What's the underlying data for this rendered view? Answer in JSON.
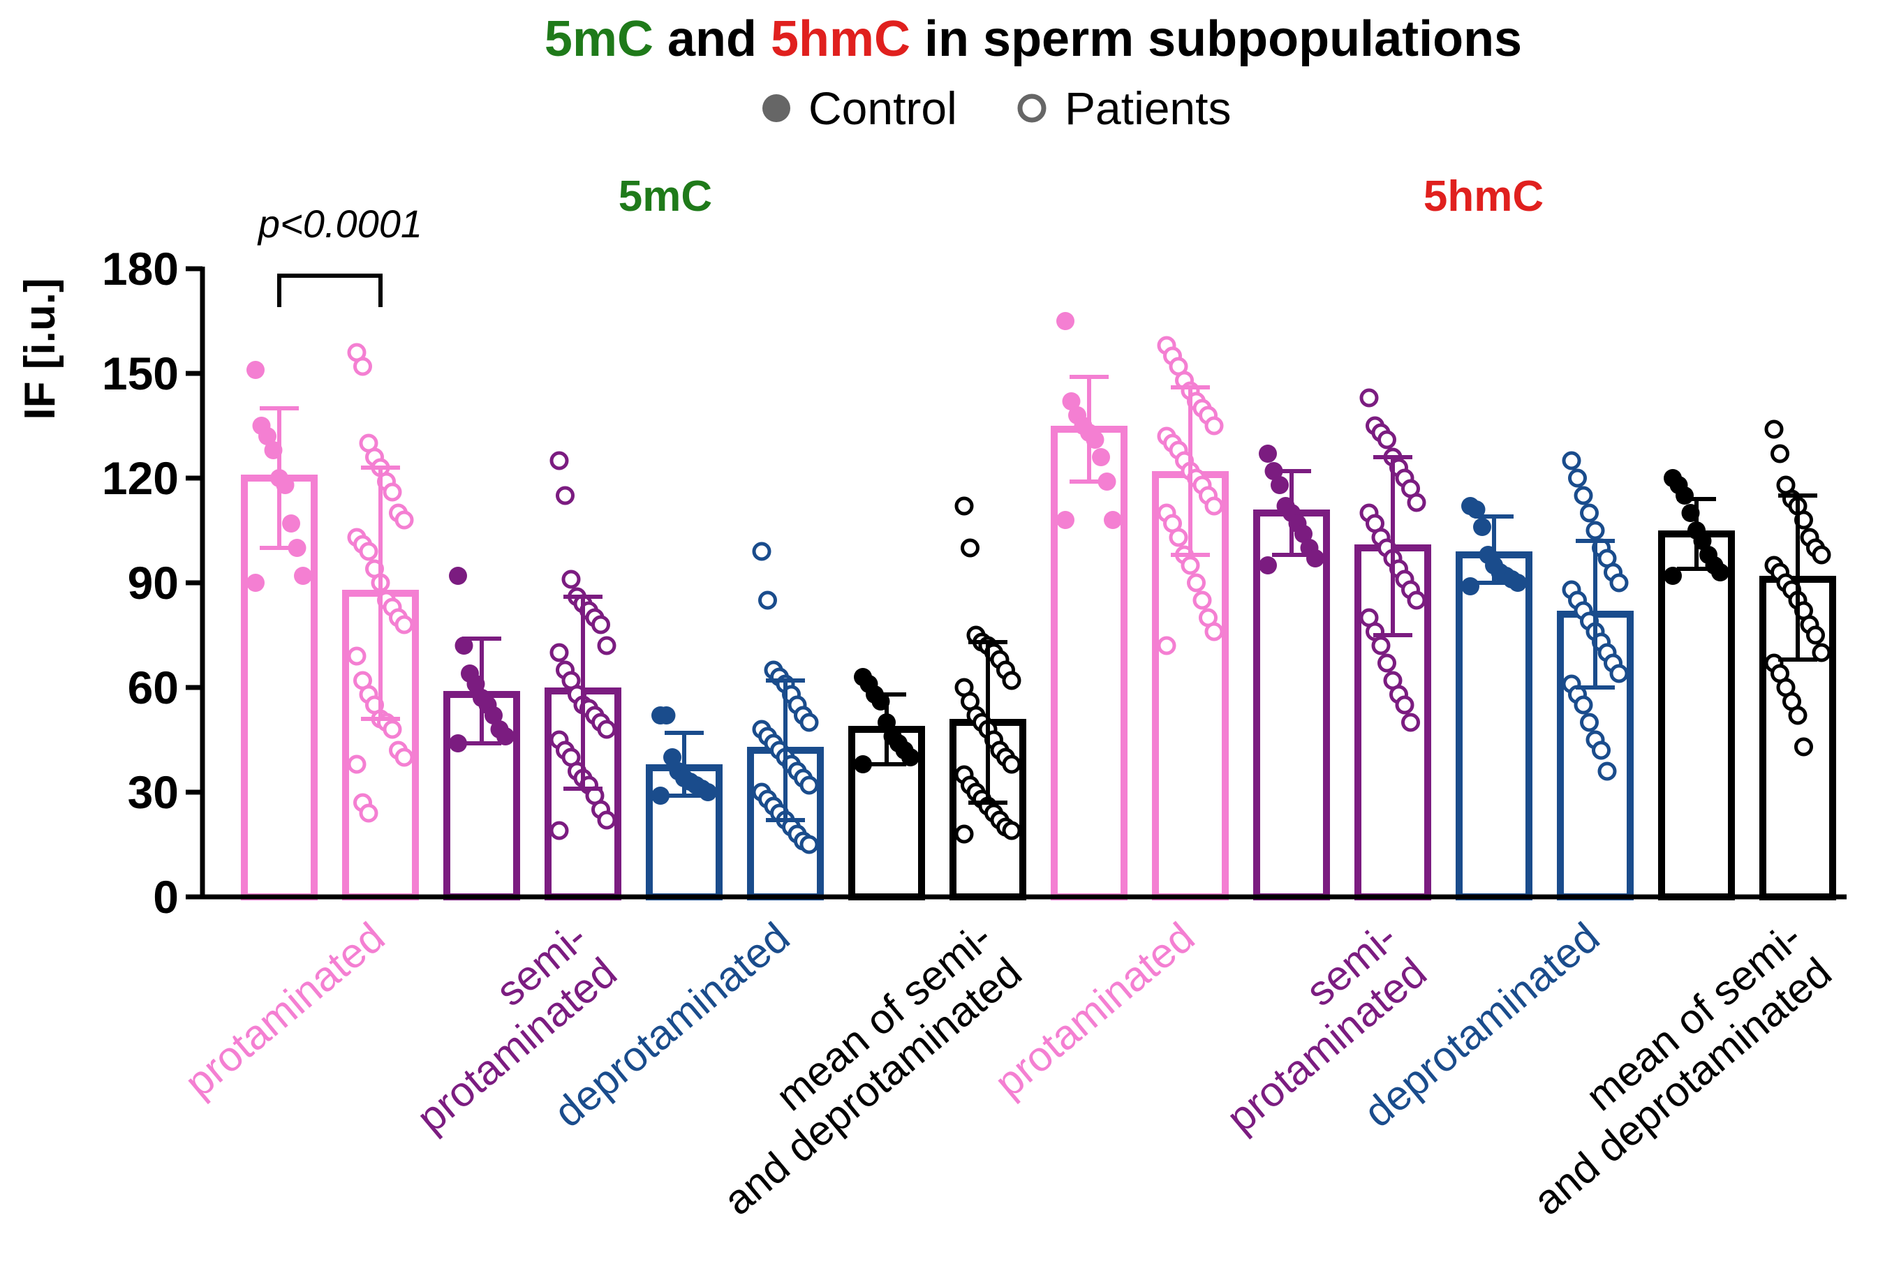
{
  "colors": {
    "protaminated": "#f47fd2",
    "semi": "#7b1c80",
    "deprot": "#1a4c8c",
    "mean": "#000000",
    "green": "#1f7a1a",
    "red": "#e0201e",
    "legend_dot": "#666666"
  },
  "title": {
    "part1": "5mC",
    "part2": " and ",
    "part3": "5hmC",
    "part4": " in sperm subpopulations"
  },
  "legend": {
    "control": "Control",
    "patients": "Patients"
  },
  "chart_data": {
    "type": "bar",
    "title": "5mC and 5hmC in sperm subpopulations",
    "ylabel": "IF [i.u.]",
    "xlabel": "",
    "ylim": [
      0,
      180
    ],
    "yticks": [
      "0",
      "30",
      "60",
      "90",
      "120",
      "150",
      "180"
    ],
    "grid": false,
    "legend_position": "top-center",
    "annotation": {
      "text": "p<0.0001",
      "between": [
        0,
        1
      ]
    },
    "groups": [
      {
        "label": "5mC",
        "color": "green"
      },
      {
        "label": "5hmC",
        "color": "red"
      }
    ],
    "category_labels": [
      {
        "line1": "",
        "line2": "protaminated",
        "color": "protaminated"
      },
      {
        "line1": "semi-",
        "line2": "protaminated",
        "color": "semi"
      },
      {
        "line1": "",
        "line2": "deprotaminated",
        "color": "deprot"
      },
      {
        "line1": "mean of semi-",
        "line2": "and deprotaminated",
        "color": "mean"
      },
      {
        "line1": "",
        "line2": "protaminated",
        "color": "protaminated"
      },
      {
        "line1": "semi-",
        "line2": "protaminated",
        "color": "semi"
      },
      {
        "line1": "",
        "line2": "deprotaminated",
        "color": "deprot"
      },
      {
        "line1": "mean of semi-",
        "line2": "and deprotaminated",
        "color": "mean"
      }
    ],
    "series": [
      {
        "group": "5mC",
        "category": "protaminated",
        "name": "Control",
        "color": "protaminated",
        "filled": true,
        "mean": 120,
        "sd_low": 100,
        "sd_high": 140,
        "points": [
          151,
          135,
          132,
          128,
          120,
          118,
          107,
          100,
          92,
          90
        ]
      },
      {
        "group": "5mC",
        "category": "protaminated",
        "name": "Patients",
        "color": "protaminated",
        "filled": false,
        "mean": 87,
        "sd_low": 51,
        "sd_high": 123,
        "points": [
          156,
          152,
          130,
          126,
          123,
          119,
          116,
          110,
          108,
          103,
          101,
          99,
          94,
          90,
          85,
          83,
          80,
          78,
          69,
          62,
          58,
          55,
          51,
          50,
          48,
          42,
          40,
          38,
          27,
          24
        ]
      },
      {
        "group": "5mC",
        "category": "semi-protaminated",
        "name": "Control",
        "color": "semi",
        "filled": true,
        "mean": 58,
        "sd_low": 44,
        "sd_high": 74,
        "points": [
          92,
          72,
          64,
          61,
          57,
          55,
          52,
          48,
          46,
          44
        ]
      },
      {
        "group": "5mC",
        "category": "semi-protaminated",
        "name": "Patients",
        "color": "semi",
        "filled": false,
        "mean": 59,
        "sd_low": 31,
        "sd_high": 86,
        "points": [
          125,
          115,
          91,
          86,
          84,
          82,
          80,
          78,
          72,
          70,
          65,
          62,
          58,
          55,
          54,
          52,
          50,
          48,
          45,
          42,
          40,
          36,
          34,
          32,
          29,
          25,
          22,
          19
        ]
      },
      {
        "group": "5mC",
        "category": "deprotaminated",
        "name": "Control",
        "color": "deprot",
        "filled": true,
        "mean": 37,
        "sd_low": 29,
        "sd_high": 47,
        "points": [
          52,
          52,
          40,
          36,
          34,
          33,
          32,
          31,
          30,
          29
        ]
      },
      {
        "group": "5mC",
        "category": "deprotaminated",
        "name": "Patients",
        "color": "deprot",
        "filled": false,
        "mean": 42,
        "sd_low": 22,
        "sd_high": 62,
        "points": [
          99,
          85,
          65,
          63,
          61,
          58,
          55,
          52,
          50,
          48,
          46,
          44,
          42,
          40,
          38,
          36,
          34,
          32,
          30,
          28,
          26,
          24,
          22,
          20,
          18,
          16,
          15
        ]
      },
      {
        "group": "5mC",
        "category": "mean of semi- and deprotaminated",
        "name": "Control",
        "color": "mean",
        "filled": true,
        "mean": 48,
        "sd_low": 38,
        "sd_high": 58,
        "points": [
          63,
          61,
          58,
          56,
          50,
          46,
          44,
          42,
          40,
          38
        ]
      },
      {
        "group": "5mC",
        "category": "mean of semi- and deprotaminated",
        "name": "Patients",
        "color": "mean",
        "filled": false,
        "mean": 50,
        "sd_low": 27,
        "sd_high": 73,
        "points": [
          112,
          100,
          75,
          73,
          72,
          70,
          68,
          65,
          62,
          60,
          56,
          52,
          50,
          48,
          45,
          42,
          40,
          38,
          35,
          32,
          30,
          28,
          26,
          24,
          22,
          20,
          19,
          18
        ]
      },
      {
        "group": "5hmC",
        "category": "protaminated",
        "name": "Control",
        "color": "protaminated",
        "filled": true,
        "mean": 134,
        "sd_low": 119,
        "sd_high": 149,
        "points": [
          165,
          142,
          138,
          135,
          133,
          131,
          126,
          119,
          108,
          108
        ]
      },
      {
        "group": "5hmC",
        "category": "protaminated",
        "name": "Patients",
        "color": "protaminated",
        "filled": false,
        "mean": 121,
        "sd_low": 98,
        "sd_high": 146,
        "points": [
          158,
          155,
          152,
          148,
          145,
          142,
          140,
          138,
          135,
          132,
          130,
          128,
          125,
          122,
          120,
          118,
          115,
          112,
          110,
          107,
          103,
          98,
          95,
          90,
          85,
          80,
          76,
          72
        ]
      },
      {
        "group": "5hmC",
        "category": "semi-protaminated",
        "name": "Control",
        "color": "semi",
        "filled": true,
        "mean": 110,
        "sd_low": 98,
        "sd_high": 122,
        "points": [
          127,
          122,
          118,
          112,
          110,
          107,
          104,
          100,
          97,
          95
        ]
      },
      {
        "group": "5hmC",
        "category": "semi-protaminated",
        "name": "Patients",
        "color": "semi",
        "filled": false,
        "mean": 100,
        "sd_low": 75,
        "sd_high": 126,
        "points": [
          143,
          135,
          133,
          131,
          126,
          123,
          120,
          117,
          113,
          110,
          107,
          103,
          100,
          97,
          94,
          91,
          88,
          85,
          80,
          76,
          72,
          67,
          62,
          58,
          55,
          50
        ]
      },
      {
        "group": "5hmC",
        "category": "deprotaminated",
        "name": "Control",
        "color": "deprot",
        "filled": true,
        "mean": 98,
        "sd_low": 90,
        "sd_high": 109,
        "points": [
          112,
          111,
          106,
          98,
          95,
          93,
          92,
          91,
          90,
          89
        ]
      },
      {
        "group": "5hmC",
        "category": "deprotaminated",
        "name": "Patients",
        "color": "deprot",
        "filled": false,
        "mean": 81,
        "sd_low": 60,
        "sd_high": 102,
        "points": [
          125,
          120,
          115,
          110,
          105,
          100,
          97,
          93,
          90,
          88,
          85,
          82,
          79,
          76,
          73,
          70,
          67,
          64,
          61,
          58,
          55,
          50,
          45,
          42,
          36
        ]
      },
      {
        "group": "5hmC",
        "category": "mean of semi- and deprotaminated",
        "name": "Control",
        "color": "mean",
        "filled": true,
        "mean": 104,
        "sd_low": 94,
        "sd_high": 114,
        "points": [
          120,
          118,
          115,
          110,
          105,
          102,
          98,
          95,
          93,
          92
        ]
      },
      {
        "group": "5hmC",
        "category": "mean of semi- and deprotaminated",
        "name": "Patients",
        "color": "mean",
        "filled": false,
        "mean": 91,
        "sd_low": 68,
        "sd_high": 115,
        "points": [
          134,
          127,
          118,
          114,
          112,
          108,
          103,
          100,
          98,
          95,
          93,
          90,
          88,
          85,
          82,
          78,
          75,
          70,
          67,
          64,
          60,
          56,
          52,
          43
        ]
      }
    ]
  }
}
